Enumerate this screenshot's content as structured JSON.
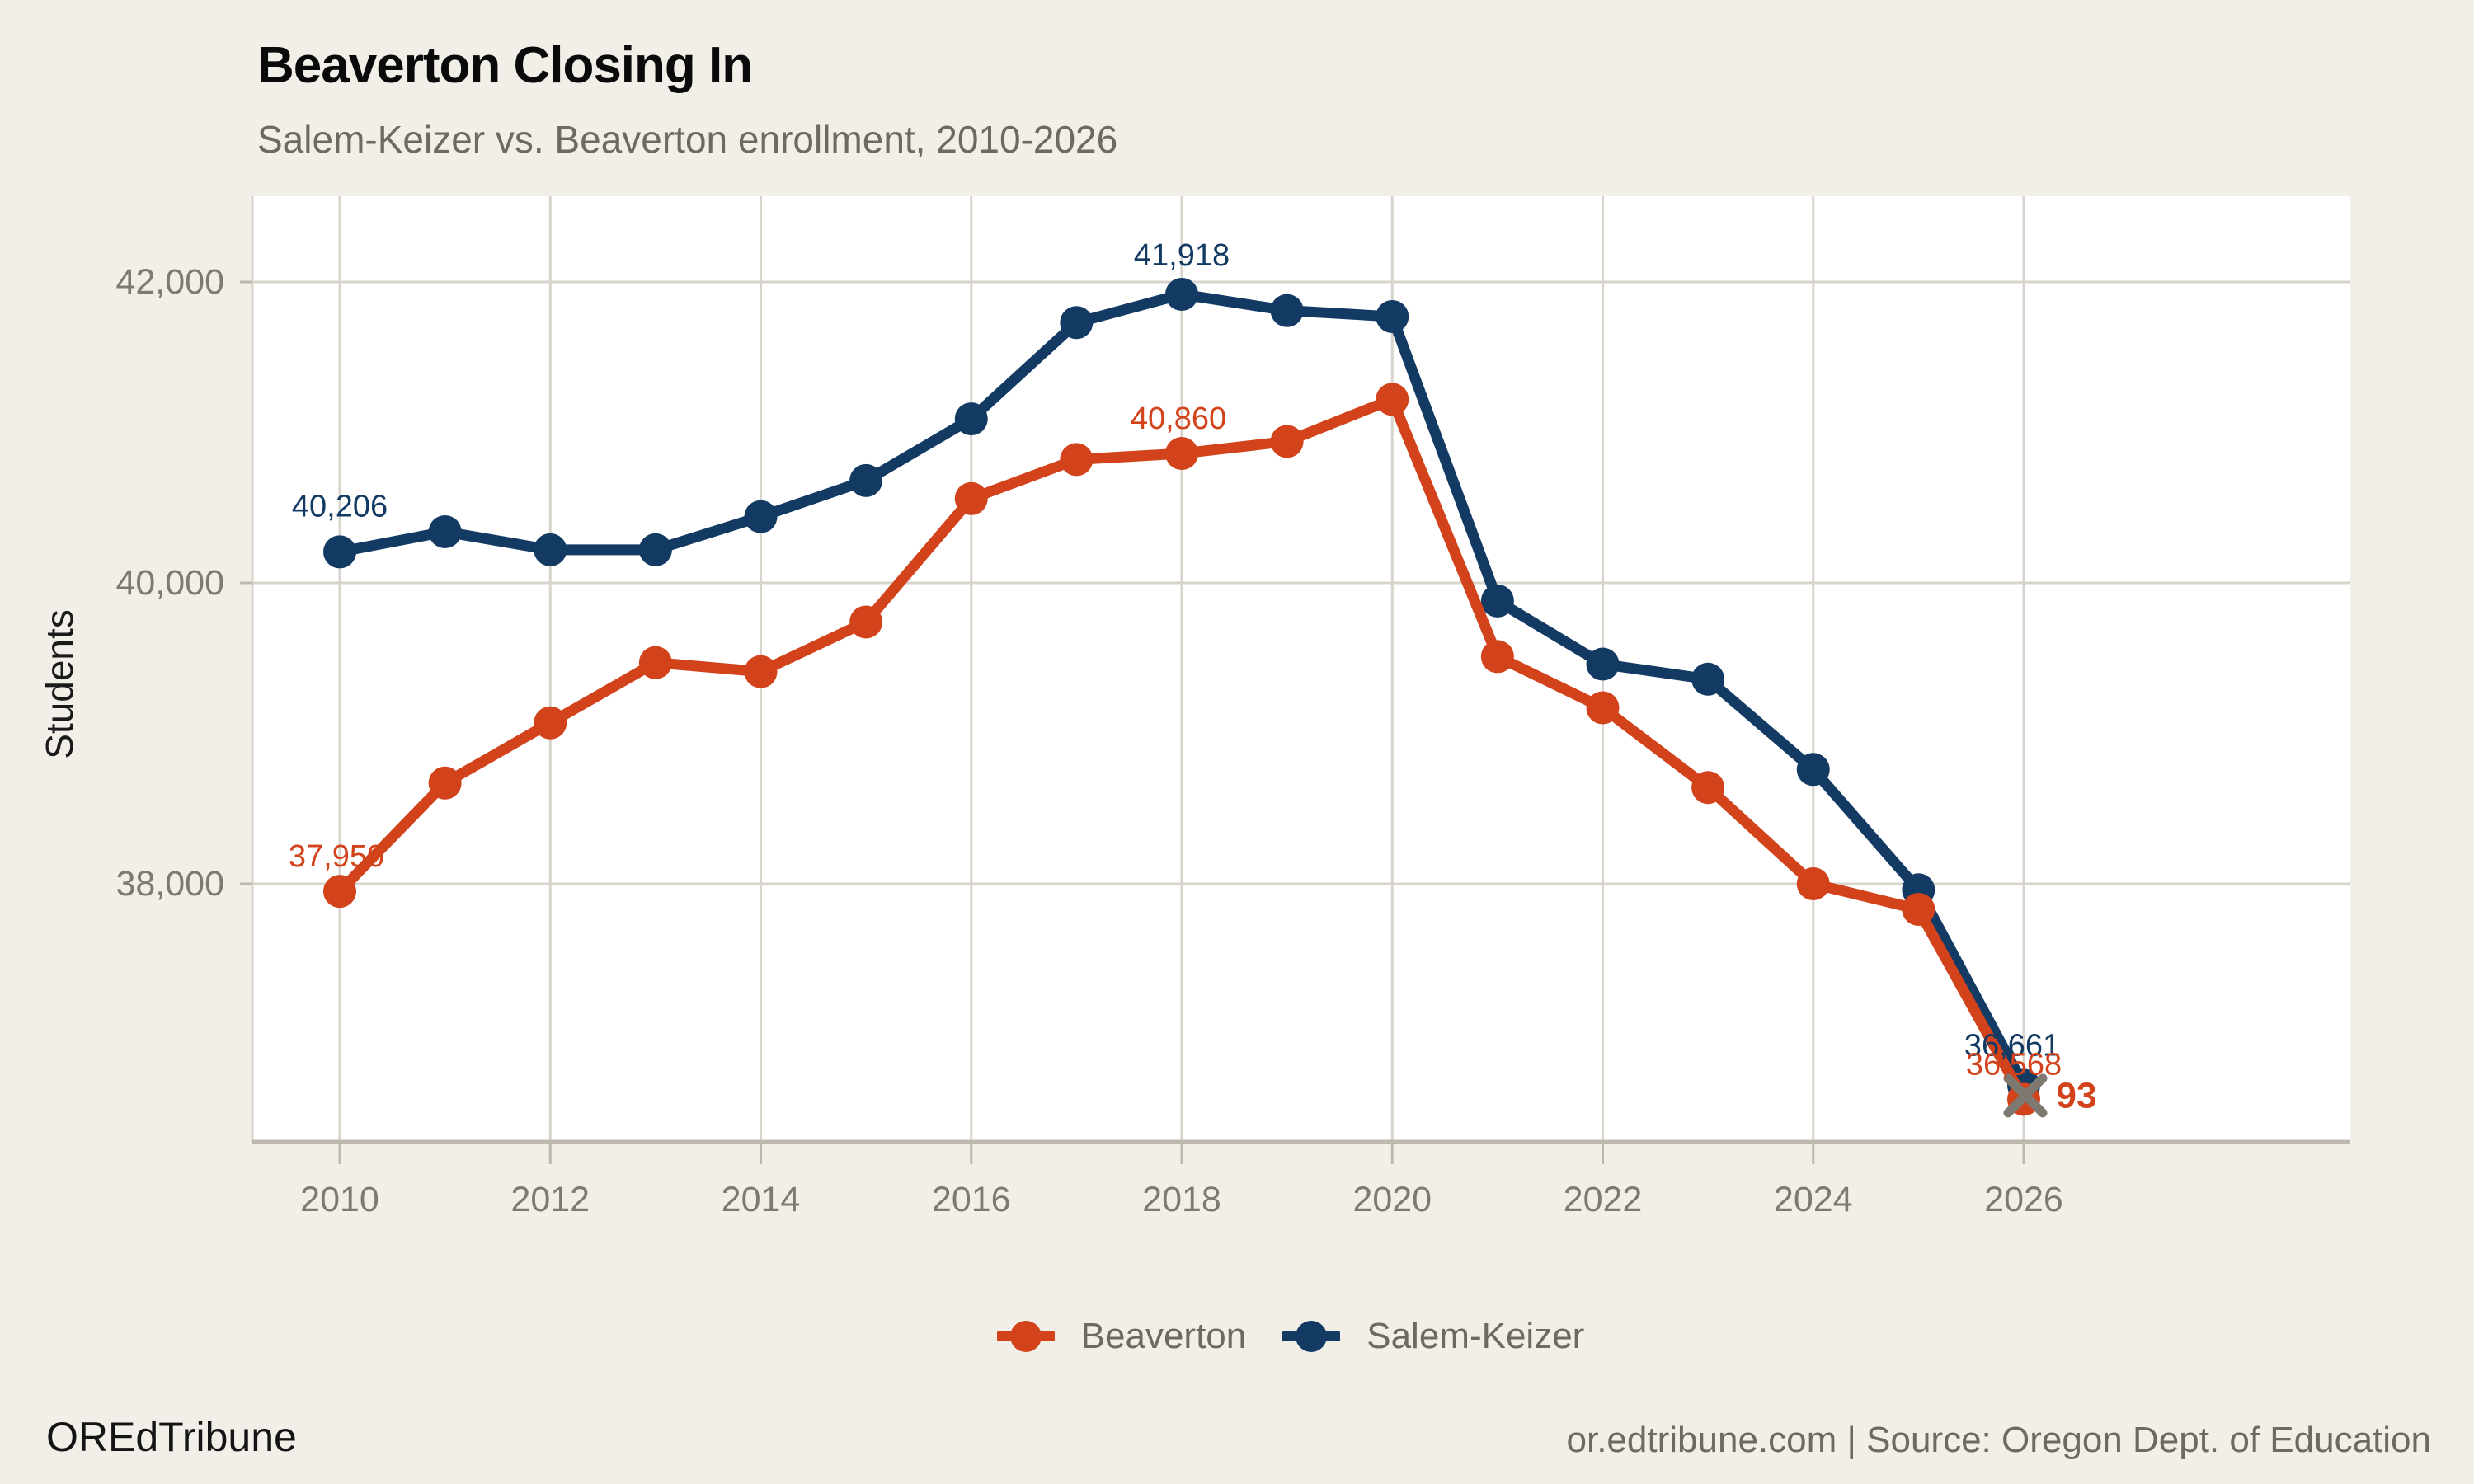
{
  "header": {
    "title": "Beaverton Closing In",
    "subtitle": "Salem-Keizer vs. Beaverton enrollment, 2010-2026"
  },
  "footer": {
    "brand": "OREdTribune",
    "source": "or.edtribune.com | Source: Oregon Dept. of Education"
  },
  "legend": {
    "items": [
      {
        "label": "Beaverton",
        "color": "#D2431C"
      },
      {
        "label": "Salem-Keizer",
        "color": "#123A63"
      }
    ]
  },
  "theme": {
    "background": "#F2EFE9",
    "panel": "#FFFFFF",
    "gridline": "#D8D4CC",
    "axis_line": "#BEB9AF",
    "tick_text": "#7E7973",
    "muted_text": "#6E6961",
    "axis_title_text": "#1A1A1A",
    "crossing_marker": "#7D7870"
  },
  "chart_data": {
    "type": "line",
    "title": "Beaverton Closing In",
    "subtitle": "Salem-Keizer vs. Beaverton enrollment, 2010-2026",
    "xlabel": "",
    "ylabel": "Students",
    "grid": "on",
    "legend_position": "bottom",
    "x": [
      2010,
      2011,
      2012,
      2013,
      2014,
      2015,
      2016,
      2017,
      2018,
      2019,
      2020,
      2021,
      2022,
      2023,
      2024,
      2025,
      2026
    ],
    "x_ticks": [
      {
        "value": 2010,
        "label": "2010"
      },
      {
        "value": 2012,
        "label": "2012"
      },
      {
        "value": 2014,
        "label": "2014"
      },
      {
        "value": 2016,
        "label": "2016"
      },
      {
        "value": 2018,
        "label": "2018"
      },
      {
        "value": 2020,
        "label": "2020"
      },
      {
        "value": 2022,
        "label": "2022"
      },
      {
        "value": 2024,
        "label": "2024"
      },
      {
        "value": 2026,
        "label": "2026"
      }
    ],
    "y_ticks": [
      {
        "value": 38000,
        "label": "38,000"
      },
      {
        "value": 40000,
        "label": "40,000"
      },
      {
        "value": 42000,
        "label": "42,000"
      }
    ],
    "ylim": [
      36285,
      42570
    ],
    "xlim": [
      2009.2,
      2029.1
    ],
    "series": [
      {
        "name": "Beaverton",
        "color": "#D2431C",
        "values": [
          37950,
          38670,
          39070,
          39470,
          39410,
          39740,
          40560,
          40820,
          40860,
          40940,
          41220,
          39510,
          39170,
          38640,
          38000,
          37830,
          36568
        ]
      },
      {
        "name": "Salem-Keizer",
        "color": "#123A63",
        "values": [
          40206,
          40340,
          40220,
          40220,
          40440,
          40680,
          41090,
          41730,
          41918,
          41810,
          41770,
          39880,
          39460,
          39360,
          38760,
          37960,
          36661
        ]
      }
    ],
    "point_labels": [
      {
        "series": "Salem-Keizer",
        "year": 2010,
        "text": "40,206"
      },
      {
        "series": "Beaverton",
        "year": 2010,
        "text": "37,950"
      },
      {
        "series": "Salem-Keizer",
        "year": 2018,
        "text": "41,918"
      },
      {
        "series": "Beaverton",
        "year": 2018,
        "text": "40,860"
      },
      {
        "series": "Salem-Keizer",
        "year": 2026,
        "text": "36,661"
      },
      {
        "series": "Beaverton",
        "year": 2026,
        "text": "36,568"
      }
    ],
    "gap_label": {
      "text": "93",
      "year": 2026
    },
    "crossing_marker": {
      "year": 2026,
      "symbol": "x"
    }
  }
}
